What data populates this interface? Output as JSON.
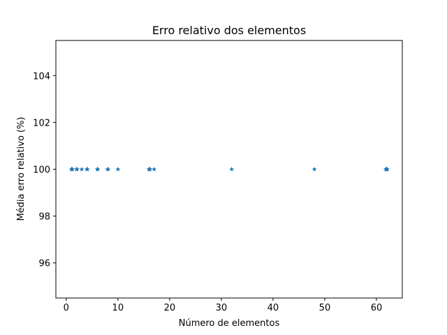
{
  "chart_data": {
    "type": "scatter",
    "title": "Erro relativo dos elementos",
    "xlabel": "Número de elementos",
    "ylabel": "Média erro relativo (%)",
    "xlim": [
      -2,
      65
    ],
    "ylim": [
      94.5,
      105.5
    ],
    "xticks": [
      0,
      10,
      20,
      30,
      40,
      50,
      60
    ],
    "yticks": [
      96,
      98,
      100,
      102,
      104
    ],
    "grid": false,
    "marker": "star",
    "color": "#1f77b4",
    "series": [
      {
        "x": [
          1,
          1.1,
          1.2,
          2,
          2.1,
          3,
          4,
          4.1,
          6,
          6.1,
          8,
          8.1,
          10,
          16,
          16.1,
          16.2,
          17,
          32,
          48,
          61.8,
          61.9,
          62,
          62.1
        ],
        "y": [
          100,
          100,
          100,
          100,
          100,
          100,
          100,
          100,
          100,
          100,
          100,
          100,
          100,
          100,
          100,
          100,
          100,
          100,
          100,
          100,
          100,
          100,
          100
        ]
      }
    ]
  }
}
